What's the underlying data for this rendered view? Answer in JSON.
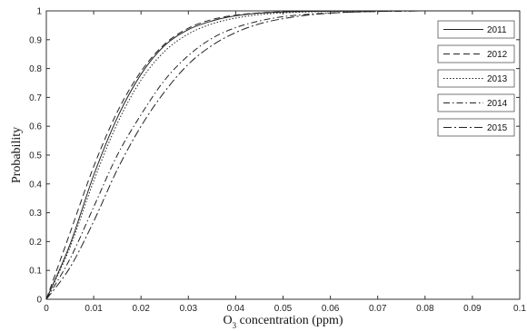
{
  "chart_data": {
    "type": "line",
    "xlabel": "O",
    "xlabel_subscript": "3",
    "xlabel_rest": " concentration (ppm)",
    "ylabel": "Probability",
    "xlim": [
      0,
      0.1
    ],
    "ylim": [
      0,
      1
    ],
    "x_ticks": [
      "0",
      "0.01",
      "0.02",
      "0.03",
      "0.04",
      "0.05",
      "0.06",
      "0.07",
      "0.08",
      "0.09",
      "0.1"
    ],
    "y_ticks": [
      "0",
      "0.1",
      "0.2",
      "0.3",
      "0.4",
      "0.5",
      "0.6",
      "0.7",
      "0.8",
      "0.9",
      "1"
    ],
    "grid": false,
    "legend_position": "top-right",
    "x": [
      0,
      0.005,
      0.01,
      0.015,
      0.02,
      0.025,
      0.03,
      0.035,
      0.04,
      0.045,
      0.05,
      0.055,
      0.06,
      0.065,
      0.07,
      0.075,
      0.08,
      0.085,
      0.09,
      0.095,
      0.1
    ],
    "series": [
      {
        "name": "2011",
        "dash": "",
        "values": [
          0,
          0.19,
          0.43,
          0.63,
          0.78,
          0.88,
          0.935,
          0.965,
          0.983,
          0.992,
          0.996,
          0.998,
          0.999,
          0.9995,
          1,
          1,
          1,
          1,
          1,
          1,
          1
        ]
      },
      {
        "name": "2012",
        "dash": "7,4",
        "values": [
          0,
          0.23,
          0.46,
          0.65,
          0.79,
          0.885,
          0.94,
          0.97,
          0.985,
          0.993,
          0.997,
          0.999,
          0.9995,
          1,
          1,
          1,
          1,
          1,
          1,
          1,
          1
        ]
      },
      {
        "name": "2013",
        "dash": "1.5,2",
        "values": [
          0,
          0.18,
          0.41,
          0.61,
          0.76,
          0.86,
          0.92,
          0.955,
          0.975,
          0.987,
          0.993,
          0.996,
          0.998,
          0.999,
          0.9995,
          1,
          1,
          1,
          1,
          1,
          1
        ]
      },
      {
        "name": "2014",
        "dash": "7,3,1.5,3",
        "values": [
          0,
          0.14,
          0.32,
          0.5,
          0.64,
          0.76,
          0.845,
          0.905,
          0.942,
          0.965,
          0.98,
          0.988,
          0.993,
          0.996,
          0.998,
          0.999,
          1,
          1,
          1,
          1,
          1
        ]
      },
      {
        "name": "2015",
        "dash": "9,3,2,3",
        "values": [
          0,
          0.11,
          0.27,
          0.45,
          0.6,
          0.72,
          0.815,
          0.88,
          0.925,
          0.955,
          0.973,
          0.985,
          0.992,
          0.996,
          0.998,
          0.999,
          1,
          1,
          1,
          1,
          1
        ]
      }
    ]
  }
}
